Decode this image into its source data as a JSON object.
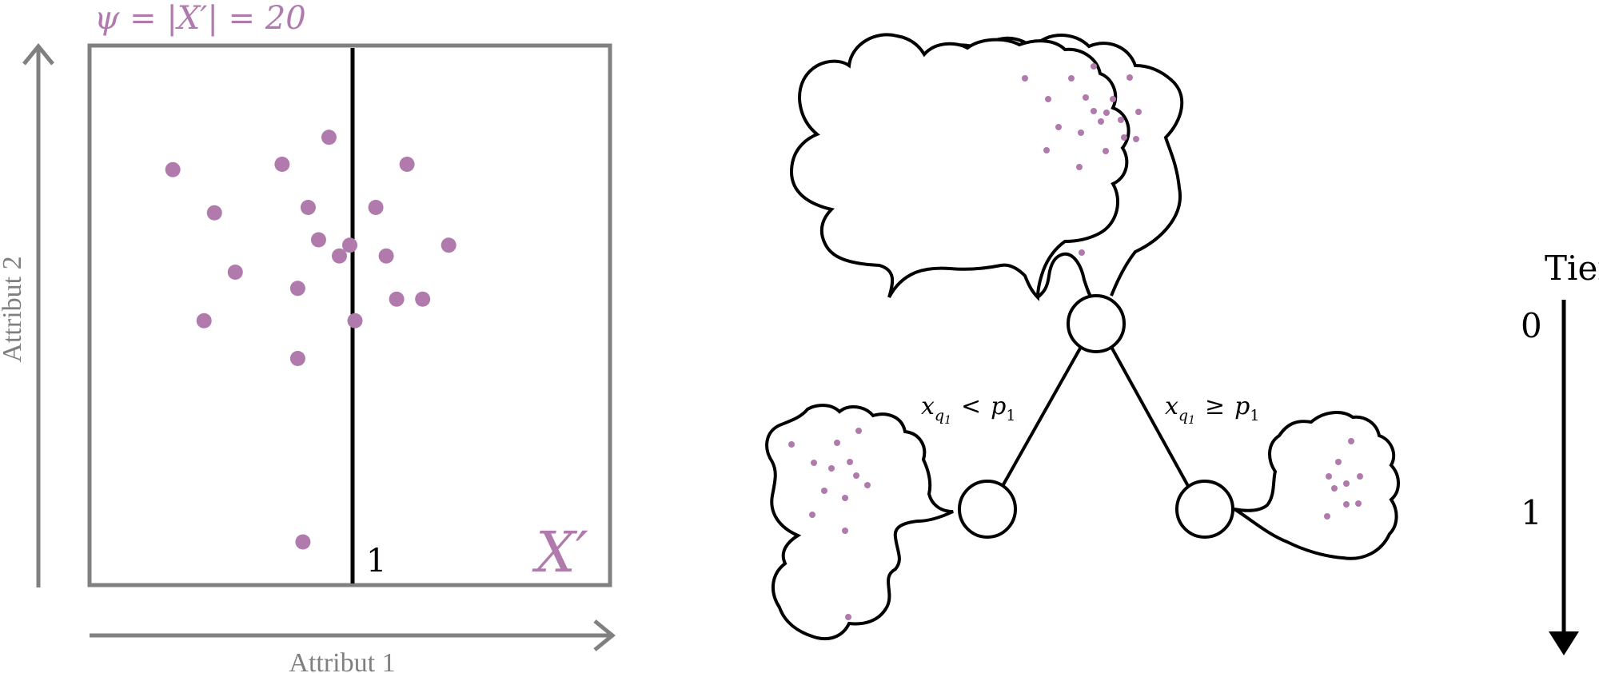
{
  "colors": {
    "gray": "#808080",
    "accent": "#b07aad",
    "black": "#000000"
  },
  "left_panel": {
    "top_label": "ψ = |X′| = 20",
    "set_label": "X′",
    "split_label": "1",
    "xlabel": "Attribut 1",
    "ylabel": "Attribut 2",
    "points": [
      [
        0.16,
        0.77
      ],
      [
        0.37,
        0.78
      ],
      [
        0.46,
        0.83
      ],
      [
        0.61,
        0.78
      ],
      [
        0.24,
        0.69
      ],
      [
        0.42,
        0.7
      ],
      [
        0.55,
        0.7
      ],
      [
        0.44,
        0.64
      ],
      [
        0.5,
        0.63
      ],
      [
        0.69,
        0.63
      ],
      [
        0.48,
        0.61
      ],
      [
        0.57,
        0.61
      ],
      [
        0.28,
        0.58
      ],
      [
        0.4,
        0.55
      ],
      [
        0.59,
        0.53
      ],
      [
        0.64,
        0.53
      ],
      [
        0.22,
        0.49
      ],
      [
        0.51,
        0.49
      ],
      [
        0.4,
        0.42
      ],
      [
        0.41,
        0.08
      ]
    ]
  },
  "tree": {
    "left_edge_label": "x_q1 < p1",
    "right_edge_label": "x_q1 ≥ p1"
  },
  "depth_axis": {
    "title": "Tiefe",
    "levels": [
      "0",
      "1"
    ]
  }
}
